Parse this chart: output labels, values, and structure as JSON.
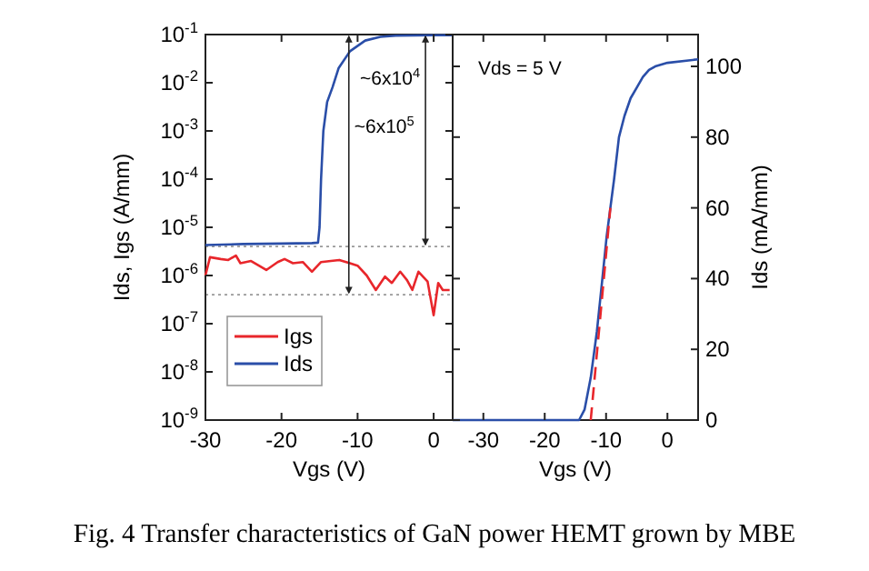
{
  "chart_data": [
    {
      "type": "line",
      "xlabel": "Vgs (V)",
      "ylabel": "Ids, Igs (A/mm)",
      "log": "y",
      "xlim": [
        -30,
        2.5
      ],
      "xticks": [
        -30,
        -20,
        -10,
        0
      ],
      "ylim": [
        1e-09,
        0.1
      ],
      "yticks": [
        {
          "value": 1e-09,
          "label": "10$^{-9}$"
        },
        {
          "value": 1e-08,
          "label": "10$^{-8}$"
        },
        {
          "value": 1e-07,
          "label": "10$^{-7}$"
        },
        {
          "value": 1e-06,
          "label": "10$^{-6}$"
        },
        {
          "value": 1e-05,
          "label": "10$^{-5}$"
        },
        {
          "value": 0.0001,
          "label": "10$^{-4}$"
        },
        {
          "value": 0.001,
          "label": "10$^{-3}$"
        },
        {
          "value": 0.01,
          "label": "10$^{-2}$"
        },
        {
          "value": 0.1,
          "label": "10$^{-1}$"
        }
      ],
      "legend": "bottom left",
      "series": [
        {
          "name": "Igs",
          "color": "#e8262b",
          "x": [
            -30,
            -29.4,
            -28,
            -27,
            -26,
            -25.4,
            -24,
            -22,
            -20.5,
            -19.6,
            -18.5,
            -17.2,
            -16,
            -14.8,
            -13.5,
            -12.4,
            -11,
            -10,
            -8.8,
            -7.6,
            -6.4,
            -5.5,
            -4.4,
            -3.5,
            -2.8,
            -2,
            -0.8,
            0,
            0.6,
            1.2,
            2.1
          ],
          "values": [
            1e-06,
            2.4e-06,
            2.2e-06,
            2.1e-06,
            2.6e-06,
            1.8e-06,
            2e-06,
            1.3e-06,
            1.9e-06,
            2.2e-06,
            1.8e-06,
            1.9e-06,
            1.2e-06,
            1.9e-06,
            2e-06,
            2.1e-06,
            1.8e-06,
            1.6e-06,
            1e-06,
            5e-07,
            9.5e-07,
            7e-07,
            1.2e-06,
            8e-07,
            5e-07,
            1.2e-06,
            7.5e-07,
            1.5e-07,
            7e-07,
            5e-07,
            5e-07
          ]
        },
        {
          "name": "Ids",
          "color": "#2a4ea8",
          "x": [
            -30,
            -25,
            -20,
            -16,
            -15.2,
            -15,
            -14.8,
            -14.5,
            -14,
            -13.3,
            -12.5,
            -11,
            -9,
            -7,
            -5,
            0,
            2.5
          ],
          "values": [
            4.3e-06,
            4.5e-06,
            4.6e-06,
            4.7e-06,
            4.8e-06,
            1e-05,
            0.0001,
            0.001,
            0.004,
            0.008,
            0.02,
            0.045,
            0.075,
            0.09,
            0.095,
            0.097,
            0.097
          ]
        }
      ],
      "ref_lines": [
        {
          "axis": "y",
          "value": 4e-06,
          "color": "#999999",
          "line_style": "dotted"
        },
        {
          "axis": "y",
          "value": 4e-07,
          "color": "#999999",
          "line_style": "dotted"
        }
      ],
      "annotations": [
        "~6x10$^{4}$",
        "~6x10$^{5}$",
        "Fig. 4 Transfer characteristics of GaN power HEMT grown by MBE"
      ]
    },
    {
      "type": "line",
      "xlabel": "Vgs (V)",
      "ylabel": "Ids (mA/mm)",
      "xlim": [
        -35,
        5
      ],
      "xticks": [
        -30,
        -20,
        -10,
        0
      ],
      "ylim": [
        0,
        109
      ],
      "yticks": [
        0,
        20,
        40,
        60,
        80,
        100
      ],
      "series": [
        {
          "color": "#2a4ea8",
          "x": [
            -35,
            -14.4,
            -13.5,
            -12.5,
            -11.5,
            -10.6,
            -9.9,
            -9.3,
            -8.7,
            -7.9,
            -7,
            -6,
            -5,
            -4,
            -3,
            -2,
            0,
            5
          ],
          "values": [
            0,
            0,
            3,
            12,
            25,
            40,
            52,
            60,
            68,
            80,
            86,
            91,
            94,
            97,
            99,
            100,
            101,
            102
          ]
        },
        {
          "color": "#e8262b",
          "line_style": "dashed",
          "x": [
            -12.5,
            -9.3
          ],
          "values": [
            0,
            60
          ]
        }
      ],
      "annotations": [
        "Vds = 5 V"
      ]
    }
  ]
}
